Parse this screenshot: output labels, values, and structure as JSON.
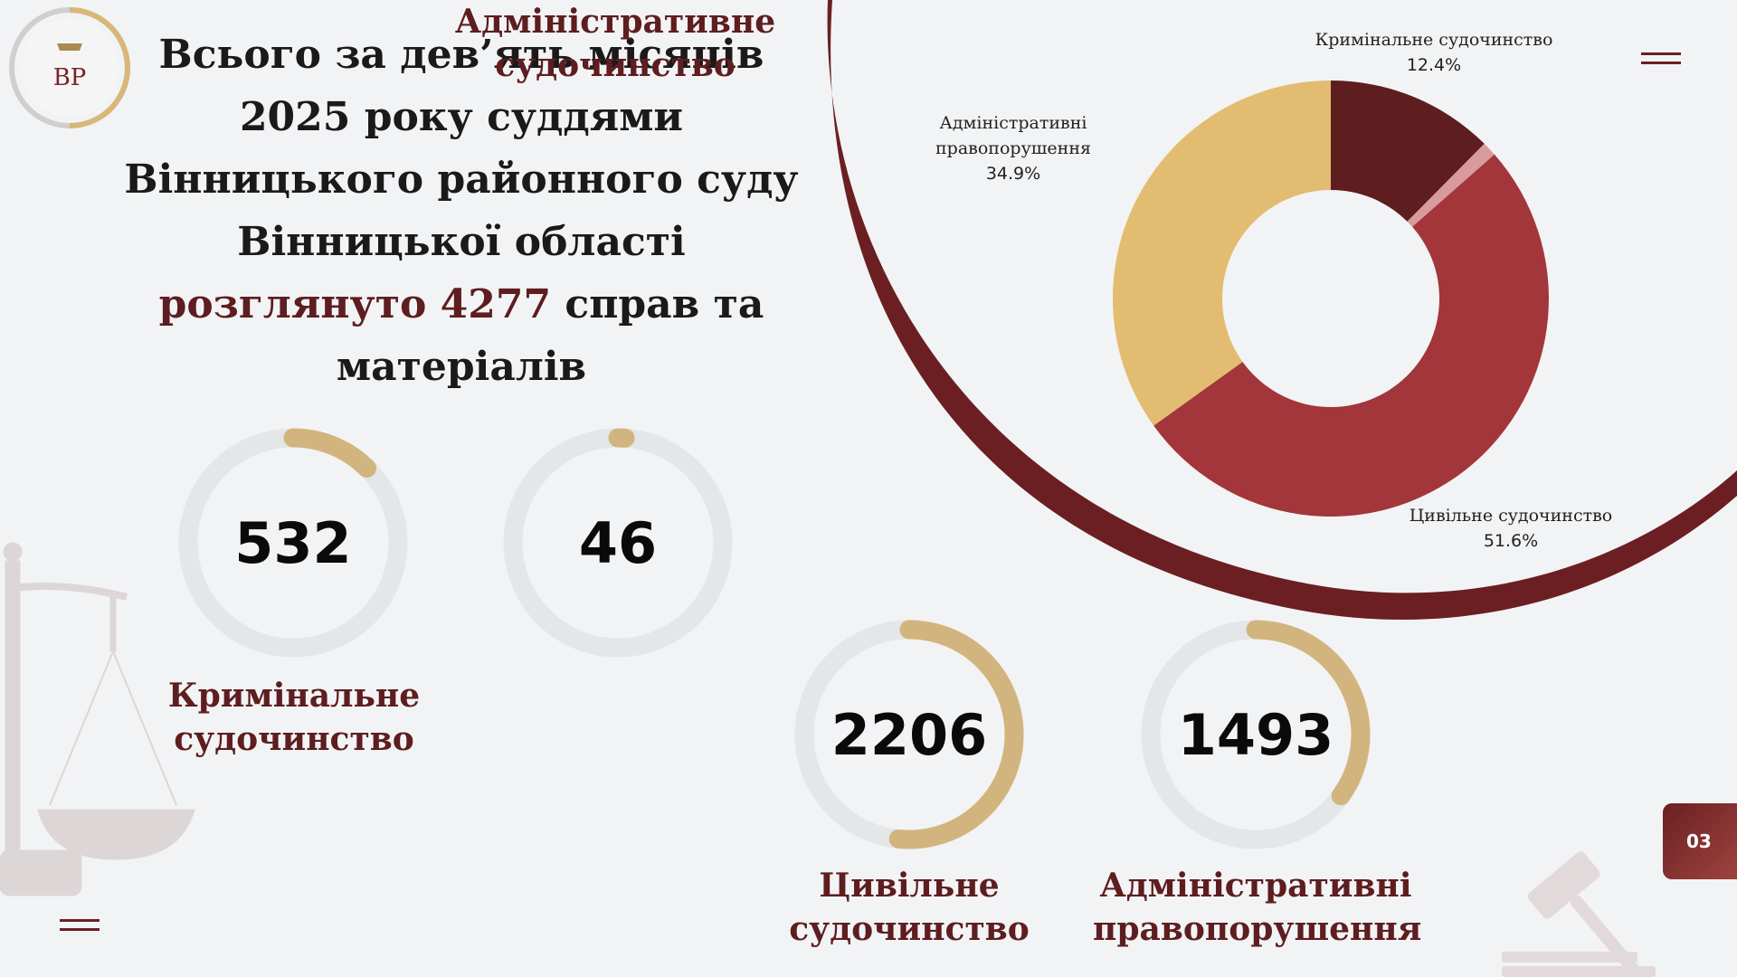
{
  "logo": {
    "monogram": "ВР"
  },
  "headline": {
    "lines": [
      "Всього за дев’ять місяців",
      "2025 року суддями",
      "Вінницького районного суду",
      "Вінницької області"
    ],
    "accent": "розглянуто 4277",
    "after_accent": " справ та",
    "last_line": "матеріалів"
  },
  "colors": {
    "dark_red": "#5e1d1f",
    "red": "#a3363a",
    "gold": "#e2bc70",
    "pink": "#d99a9c",
    "ring_bg": "#e4e6e8",
    "ring_fill": "#d2b57e"
  },
  "chart_data": [
    {
      "type": "pie",
      "style": "donut",
      "categories": [
        "Кримінальне судочинство",
        "Адміністративне судочинство",
        "Цивільне судочинство",
        "Адміністративні правопорушення"
      ],
      "values": [
        532,
        46,
        2206,
        1493
      ],
      "labels": [
        {
          "name": "Кримінальне судочинство",
          "pct": "12.4%"
        },
        {
          "name": "Цивільне судочинство",
          "pct": "51.6%"
        },
        {
          "name": "Адміністративні правопорушення",
          "pct": "34.9%"
        }
      ],
      "slice_colors": [
        "#5e1d1f",
        "#d99a9c",
        "#a3363a",
        "#e2bc70"
      ]
    }
  ],
  "stats": [
    {
      "value": "532",
      "fraction": 0.124,
      "label_line1": "Кримінальне",
      "label_line2": "судочинство"
    },
    {
      "value": "46",
      "fraction": 0.011,
      "label_line1": "Адміністративне",
      "label_line2": "судочинство"
    },
    {
      "value": "2206",
      "fraction": 0.516,
      "label_line1": "Цивільне",
      "label_line2": "судочинство"
    },
    {
      "value": "1493",
      "fraction": 0.349,
      "label_line1": "Адміністративні",
      "label_line2": "правопорушення"
    }
  ],
  "page_number": "03"
}
